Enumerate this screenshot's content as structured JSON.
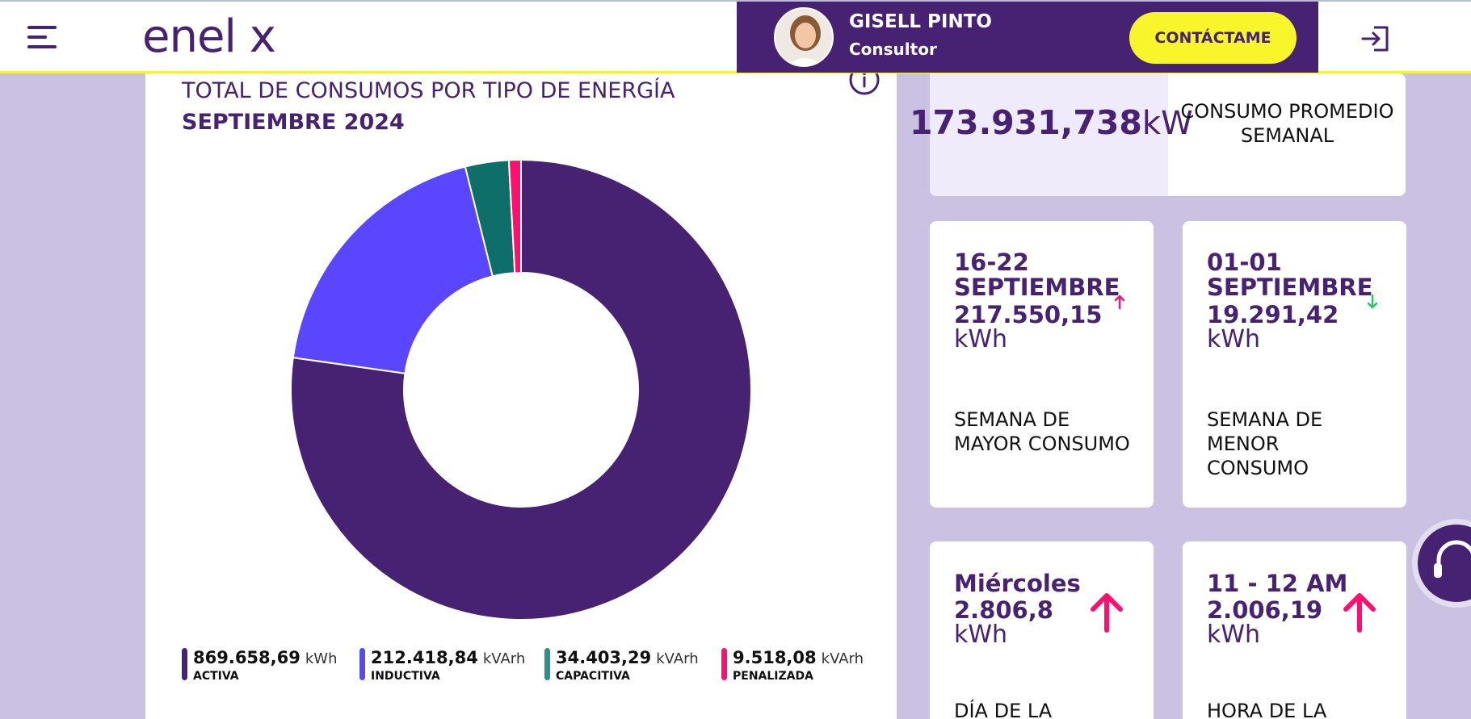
{
  "header": {
    "logo": "enel x",
    "consultant_name": "GISELL PINTO",
    "consultant_role": "Consultor",
    "contact_label": "CONTÁCTAME"
  },
  "chart_card": {
    "title": "TOTAL DE CONSUMOS POR TIPO DE ENERGÍA",
    "subtitle": "SEPTIEMBRE 2024"
  },
  "chart_data": {
    "type": "pie",
    "title": "TOTAL DE CONSUMOS POR TIPO DE ENERGÍA",
    "subtitle": "SEPTIEMBRE 2024",
    "donut": true,
    "categories": [
      "ACTIVA",
      "INDUCTIVA",
      "CAPACITIVA",
      "PENALIZADA"
    ],
    "values": [
      869658.69,
      212418.84,
      34403.29,
      9518.08
    ],
    "labels": [
      "869.658,69",
      "212.418,84",
      "34.403,29",
      "9.518,08"
    ],
    "units": [
      "kWh",
      "kVArh",
      "kVArh",
      "kVArh"
    ],
    "colors": [
      "#472272",
      "#5a46ff",
      "#0e6e69",
      "#ff0f6f"
    ],
    "legend": "bottom"
  },
  "average": {
    "value": "173.931,738",
    "unit": "kW",
    "label": "CONSUMO PROMEDIO SEMANAL"
  },
  "weeks": [
    {
      "title": "16-22 SEPTIEMBRE",
      "value": "217.550,15",
      "unit": "kWh",
      "label": "SEMANA DE MAYOR CONSUMO",
      "trend": "up",
      "color": "#ff0f6f"
    },
    {
      "title": "01-01 SEPTIEMBRE",
      "value": "19.291,42",
      "unit": "kWh",
      "label": "SEMANA DE MENOR CONSUMO",
      "trend": "down",
      "color": "#22c55e"
    }
  ],
  "metrics": [
    {
      "title": "Miércoles",
      "value": "2.806,8",
      "unit": "kWh",
      "label": "DÍA DE LA",
      "trend": "up",
      "color": "#ff0f6f"
    },
    {
      "title": "11 - 12 AM",
      "value": "2.006,19",
      "unit": "kWh",
      "label": "HORA DE LA",
      "trend": "up",
      "color": "#ff0f6f"
    }
  ],
  "icons": {
    "menu": "hamburger-menu-icon",
    "logout": "logout-icon",
    "info": "info-icon",
    "support": "headset-icon"
  }
}
